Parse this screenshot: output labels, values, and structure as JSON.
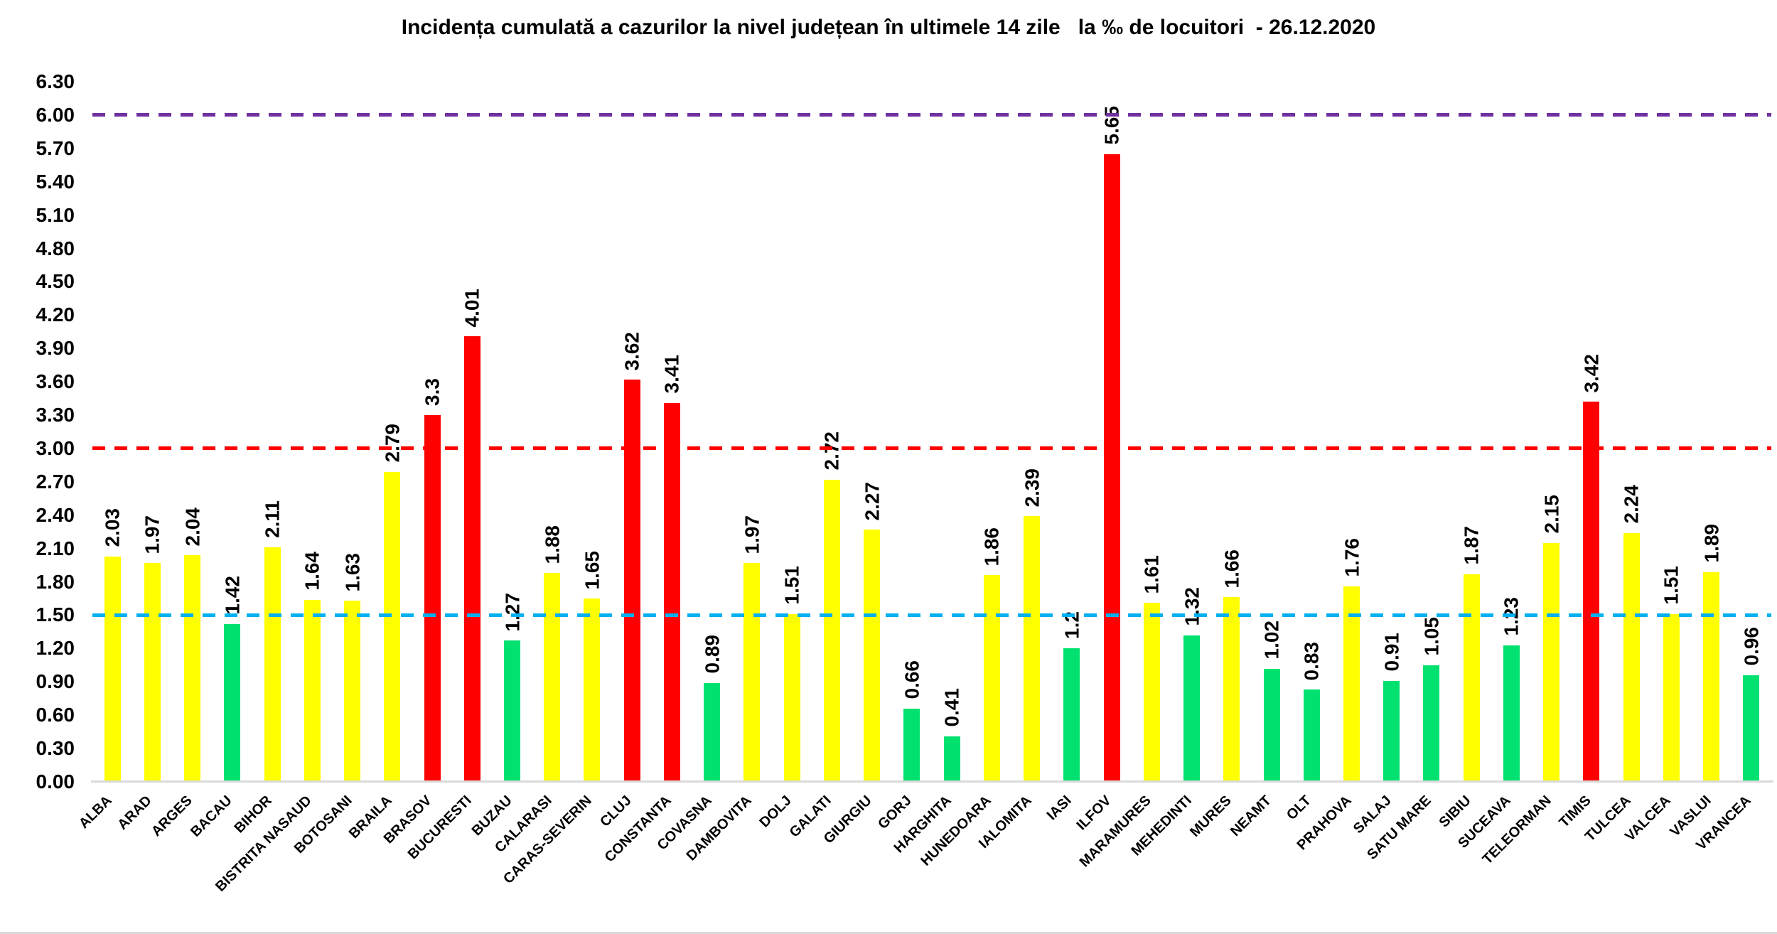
{
  "title": "Incidența cumulată a cazurilor la nivel județean în ultimele 14 zile   la ‰ de locuitori  - 26.12.2020",
  "chart_data": {
    "type": "bar",
    "title": "Incidența cumulată a cazurilor la nivel județean în ultimele 14 zile   la ‰ de locuitori  - 26.12.2020",
    "xlabel": "",
    "ylabel": "",
    "ylim": [
      0,
      6.3
    ],
    "ytick_step": 0.3,
    "ytick_labels": [
      "6.30",
      "6.00",
      "5.70",
      "5.40",
      "5.10",
      "4.80",
      "4.50",
      "4.20",
      "3.90",
      "3.60",
      "3.30",
      "3.00",
      "2.70",
      "2.40",
      "2.10",
      "1.80",
      "1.50",
      "1.20",
      "0.90",
      "0.60",
      "0.30",
      "0.00"
    ],
    "grid": false,
    "legend": false,
    "categories": [
      "ALBA",
      "ARAD",
      "ARGES",
      "BACAU",
      "BIHOR",
      "BISTRITA NASAUD",
      "BOTOSANI",
      "BRAILA",
      "BRASOV",
      "BUCURESTI",
      "BUZAU",
      "CALARASI",
      "CARAS-SEVERIN",
      "CLUJ",
      "CONSTANTA",
      "COVASNA",
      "DAMBOVITA",
      "DOLJ",
      "GALATI",
      "GIURGIU",
      "GORJ",
      "HARGHITA",
      "HUNEDOARA",
      "IALOMITA",
      "IASI",
      "ILFOV",
      "MARAMURES",
      "MEHEDINTI",
      "MURES",
      "NEAMT",
      "OLT",
      "PRAHOVA",
      "SALAJ",
      "SATU MARE",
      "SIBIU",
      "SUCEAVA",
      "TELEORMAN",
      "TIMIS",
      "TULCEA",
      "VALCEA",
      "VASLUI",
      "VRANCEA"
    ],
    "values": [
      2.03,
      1.97,
      2.04,
      1.42,
      2.11,
      1.64,
      1.63,
      2.79,
      3.3,
      4.01,
      1.27,
      1.88,
      1.65,
      3.62,
      3.41,
      0.89,
      1.97,
      1.51,
      2.72,
      2.27,
      0.66,
      0.41,
      1.86,
      2.39,
      1.2,
      5.65,
      1.61,
      1.32,
      1.66,
      1.02,
      0.83,
      1.76,
      0.91,
      1.05,
      1.87,
      1.23,
      2.15,
      3.42,
      2.24,
      1.51,
      1.89,
      0.96
    ],
    "value_labels": [
      "2.03",
      "1.97",
      "2.04",
      "1.42",
      "2.11",
      "1.64",
      "1.63",
      "2.79",
      "3.3",
      "4.01",
      "1.27",
      "1.88",
      "1.65",
      "3.62",
      "3.41",
      "0.89",
      "1.97",
      "1.51",
      "2.72",
      "2.27",
      "0.66",
      "0.41",
      "1.86",
      "2.39",
      "1.2",
      "5.65",
      "1.61",
      "1.32",
      "1.66",
      "1.02",
      "0.83",
      "1.76",
      "0.91",
      "1.05",
      "1.87",
      "1.23",
      "2.15",
      "3.42",
      "2.24",
      "1.51",
      "1.89",
      "0.96"
    ],
    "bar_color_rule": {
      "green_if_below": 1.5,
      "yellow_if_below": 3.0,
      "red_if_at_or_above": 3.0
    },
    "colors": {
      "green": "#00E170",
      "yellow": "#FFFF00",
      "red": "#FF0000"
    },
    "reference_lines": [
      {
        "value": 1.5,
        "color": "#00B0F0",
        "style": "dashed"
      },
      {
        "value": 3.0,
        "color": "#FF0000",
        "style": "dashed"
      },
      {
        "value": 6.0,
        "color": "#7030A0",
        "style": "dashed"
      }
    ]
  }
}
